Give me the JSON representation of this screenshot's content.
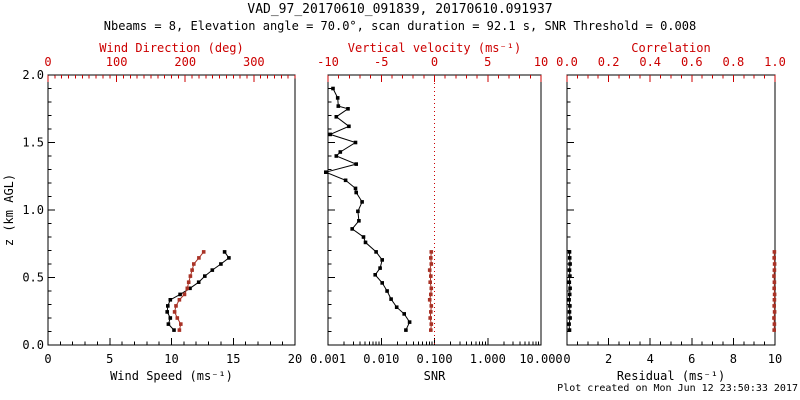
{
  "title": "VAD_97_20170610_091839, 20170610.091937",
  "subtitle": "Nbeams = 8, Elevation angle = 70.0°, scan duration = 92.1 s, SNR Threshold = 0.008",
  "footer": "Plot created on Mon Jun 12 23:50:33 2017",
  "colors": {
    "axis_red": "#cc0000",
    "data_red": "#a93226",
    "black": "#000000",
    "background": "#ffffff"
  },
  "chart_data": [
    {
      "type": "line",
      "panel": "wind",
      "ylabel": "z (km AGL)",
      "ylim": [
        0,
        2
      ],
      "yticks": [
        "0.0",
        "0.5",
        "1.0",
        "1.5",
        "2.0"
      ],
      "y_minor": 0.1,
      "bottom_axis": {
        "label": "Wind Speed (ms⁻¹)",
        "range": [
          0,
          20
        ],
        "ticks": [
          "0",
          "5",
          "10",
          "15",
          "20"
        ],
        "minor": 1,
        "color": "black"
      },
      "top_axis": {
        "label": "Wind Direction (deg)",
        "range": [
          0,
          360
        ],
        "ticks": [
          "0",
          "100",
          "200",
          "300"
        ],
        "minor": 10,
        "color": "red"
      },
      "series": [
        {
          "name": "wind-speed",
          "axis": "bottom",
          "color": "black",
          "marker": "square",
          "z": [
            0.11,
            0.155,
            0.2,
            0.245,
            0.29,
            0.335,
            0.375,
            0.42,
            0.465,
            0.51,
            0.555,
            0.6,
            0.645,
            0.69
          ],
          "values": [
            10.2,
            9.75,
            9.9,
            9.65,
            9.7,
            9.9,
            10.7,
            11.5,
            12.2,
            12.7,
            13.3,
            14.0,
            14.65,
            14.3
          ]
        },
        {
          "name": "wind-direction",
          "axis": "top",
          "color": "red",
          "marker": "square",
          "z": [
            0.11,
            0.155,
            0.2,
            0.245,
            0.29,
            0.335,
            0.375,
            0.42,
            0.465,
            0.51,
            0.555,
            0.6,
            0.645,
            0.69
          ],
          "values": [
            191.5,
            193.5,
            188.5,
            184.5,
            186.5,
            191.5,
            199.0,
            203.0,
            205.0,
            207.5,
            210.0,
            212.5,
            220.0,
            227.0
          ]
        }
      ]
    },
    {
      "type": "line",
      "panel": "snr",
      "ylabel": "",
      "ylim": [
        0,
        2
      ],
      "yticks": [
        "0.0",
        "0.5",
        "1.0",
        "1.5",
        "2.0"
      ],
      "y_minor": 0.1,
      "bottom_axis": {
        "label": "SNR",
        "scale": "log",
        "range": [
          0.001,
          10
        ],
        "ticks": [
          "0.001",
          "0.010",
          "0.100",
          "1.000",
          "10.000"
        ],
        "color": "black"
      },
      "top_axis": {
        "label": "Vertical velocity (ms⁻¹)",
        "range": [
          -10,
          10
        ],
        "ticks": [
          "-10",
          "-5",
          "0",
          "5",
          "10"
        ],
        "minor": 1,
        "color": "red"
      },
      "reference_line": {
        "axis": "top",
        "value": 0,
        "style": "dotted",
        "color": "red"
      },
      "series": [
        {
          "name": "snr",
          "axis": "bottom",
          "color": "black",
          "marker": "square",
          "z": [
            0.11,
            0.17,
            0.23,
            0.28,
            0.34,
            0.4,
            0.46,
            0.52,
            0.57,
            0.63,
            0.69,
            0.76,
            0.8,
            0.86,
            0.92,
            0.99,
            1.06,
            1.13,
            1.16,
            1.22,
            1.28,
            1.34,
            1.4,
            1.43,
            1.5,
            1.56,
            1.62,
            1.69,
            1.75,
            1.77,
            1.83,
            1.9
          ],
          "values": [
            0.029,
            0.034,
            0.027,
            0.0195,
            0.0153,
            0.0129,
            0.0104,
            0.0077,
            0.0095,
            0.0104,
            0.008,
            0.00506,
            0.00465,
            0.00285,
            0.0038,
            0.00364,
            0.00437,
            0.00339,
            0.00329,
            0.00214,
            0.00091,
            0.00339,
            0.00143,
            0.0017,
            0.00329,
            0.0011,
            0.00247,
            0.00143,
            0.00237,
            0.00156,
            0.00152,
            0.00124
          ]
        },
        {
          "name": "vertical-velocity",
          "axis": "top",
          "color": "red",
          "marker": "square",
          "z": [
            0.11,
            0.155,
            0.2,
            0.245,
            0.29,
            0.335,
            0.375,
            0.42,
            0.465,
            0.51,
            0.555,
            0.6,
            0.645,
            0.69
          ],
          "values": [
            -0.35,
            -0.3,
            -0.4,
            -0.35,
            -0.3,
            -0.45,
            -0.35,
            -0.3,
            -0.4,
            -0.35,
            -0.45,
            -0.3,
            -0.35,
            -0.3
          ]
        }
      ]
    },
    {
      "type": "line",
      "panel": "residual",
      "ylabel": "",
      "ylim": [
        0,
        2
      ],
      "yticks": [
        "0.0",
        "0.5",
        "1.0",
        "1.5",
        "2.0"
      ],
      "y_minor": 0.1,
      "bottom_axis": {
        "label": "Residual (ms⁻¹)",
        "range": [
          0,
          10
        ],
        "ticks": [
          "0",
          "2",
          "4",
          "6",
          "8",
          "10"
        ],
        "minor": 0.5,
        "color": "black"
      },
      "top_axis": {
        "label": "Correlation",
        "range": [
          0,
          1
        ],
        "ticks": [
          "0.0",
          "0.2",
          "0.4",
          "0.6",
          "0.8",
          "1.0"
        ],
        "minor": 0.05,
        "color": "red"
      },
      "series": [
        {
          "name": "residual",
          "axis": "bottom",
          "color": "black",
          "marker": "square",
          "z": [
            0.11,
            0.155,
            0.2,
            0.245,
            0.29,
            0.335,
            0.375,
            0.42,
            0.465,
            0.51,
            0.555,
            0.6,
            0.645,
            0.69
          ],
          "values": [
            0.12,
            0.1,
            0.15,
            0.12,
            0.14,
            0.1,
            0.13,
            0.15,
            0.11,
            0.14,
            0.12,
            0.15,
            0.13,
            0.12
          ]
        },
        {
          "name": "correlation",
          "axis": "top",
          "color": "red",
          "marker": "square",
          "z": [
            0.11,
            0.155,
            0.2,
            0.245,
            0.29,
            0.335,
            0.375,
            0.42,
            0.465,
            0.51,
            0.555,
            0.6,
            0.645,
            0.69
          ],
          "values": [
            0.996,
            0.997,
            0.995,
            0.998,
            0.996,
            0.997,
            0.998,
            0.996,
            0.997,
            0.995,
            0.997,
            0.998,
            0.996,
            0.997
          ]
        }
      ]
    }
  ]
}
